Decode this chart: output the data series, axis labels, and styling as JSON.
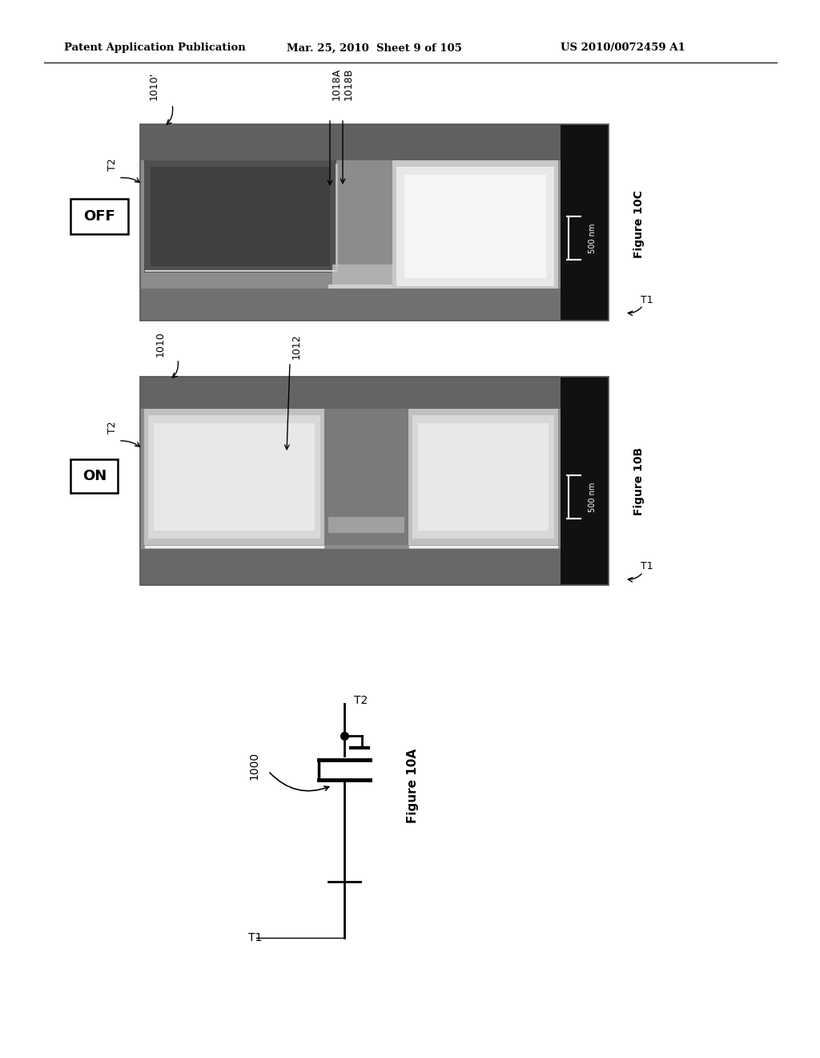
{
  "header_left": "Patent Application Publication",
  "header_center": "Mar. 25, 2010  Sheet 9 of 105",
  "header_right": "US 2010/0072459 A1",
  "fig10c": {
    "label": "Figure 10C",
    "label_off": "OFF",
    "label_1010p": "1010'",
    "label_t2": "T2",
    "label_t1": "T1",
    "label_1018a": "1018A",
    "label_1018b": "1018B",
    "scale_bar_text": "500 nm"
  },
  "fig10b": {
    "label": "Figure 10B",
    "label_on": "ON",
    "label_1010": "1010",
    "label_t2": "T2",
    "label_t1": "T1",
    "label_1012": "1012",
    "scale_bar_text": "500 nm"
  },
  "fig10a": {
    "label": "Figure 10A",
    "label_1000": "1000",
    "label_t1": "T1",
    "label_t2": "T2"
  },
  "bg_color": "#ffffff",
  "text_color": "#000000"
}
